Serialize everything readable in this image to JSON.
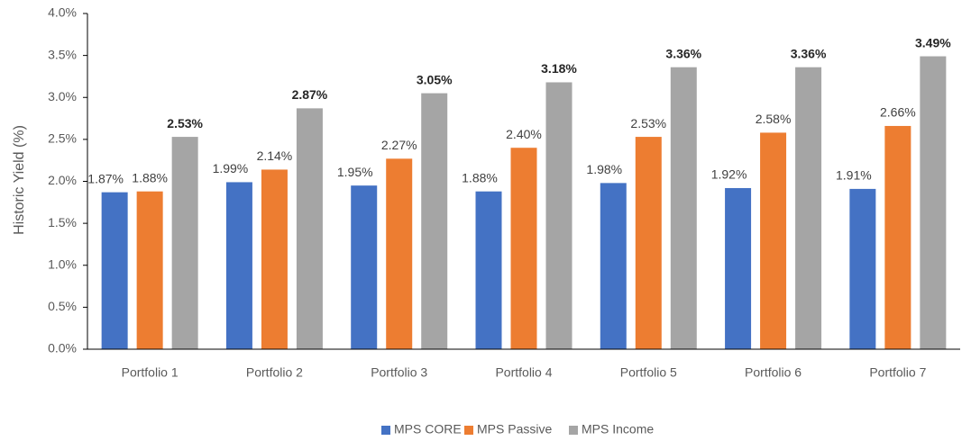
{
  "chart_data": {
    "type": "bar",
    "y_axis_label": "Historic Yield (%)",
    "categories": [
      "Portfolio 1",
      "Portfolio 2",
      "Portfolio 3",
      "Portfolio 4",
      "Portfolio 5",
      "Portfolio 6",
      "Portfolio 7"
    ],
    "series": [
      {
        "name": "MPS CORE",
        "color": "#4472c4",
        "values": [
          1.87,
          1.99,
          1.95,
          1.88,
          1.98,
          1.92,
          1.91
        ],
        "value_labels": [
          "1.87%",
          "1.99%",
          "1.95%",
          "1.88%",
          "1.98%",
          "1.92%",
          "1.91%"
        ]
      },
      {
        "name": "MPS Passive",
        "color": "#ed7d31",
        "values": [
          1.88,
          2.14,
          2.27,
          2.4,
          2.53,
          2.58,
          2.66
        ],
        "value_labels": [
          "1.88%",
          "2.14%",
          "2.27%",
          "2.40%",
          "2.53%",
          "2.58%",
          "2.66%"
        ]
      },
      {
        "name": "MPS Income",
        "color": "#a5a5a5",
        "values": [
          2.53,
          2.87,
          3.05,
          3.18,
          3.36,
          3.36,
          3.49
        ],
        "value_labels": [
          "2.53%",
          "2.87%",
          "3.05%",
          "3.18%",
          "3.36%",
          "3.36%",
          "3.49%"
        ]
      }
    ],
    "ylim": [
      0,
      4
    ],
    "yticks": [
      {
        "value": 0,
        "label": "0.0%"
      },
      {
        "value": 0.5,
        "label": "0.5%"
      },
      {
        "value": 1,
        "label": "1.0%"
      },
      {
        "value": 1.5,
        "label": "1.5%"
      },
      {
        "value": 2,
        "label": "2.0%"
      },
      {
        "value": 2.5,
        "label": "2.5%"
      },
      {
        "value": 3,
        "label": "3.0%"
      },
      {
        "value": 3.5,
        "label": "3.5%"
      },
      {
        "value": 4,
        "label": "4.0%"
      }
    ],
    "grid": false,
    "legend": "bottom"
  }
}
